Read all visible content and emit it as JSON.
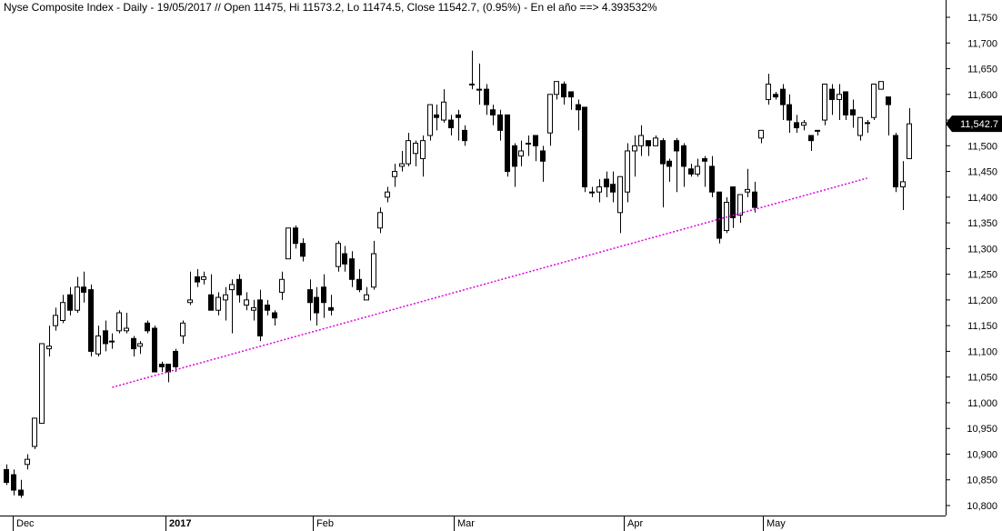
{
  "chart_data": {
    "type": "candlestick",
    "title": "Nyse Composite Index - Daily - 19/05/2017 // Open 11475, Hi 11573.2, Lo 11474.5, Close 11542.7, (0.95%) - En el año ==> 4.393532%",
    "y_ticks": [
      "11,750",
      "11,700",
      "11,650",
      "11,600",
      "11,550",
      "11,500",
      "11,450",
      "11,400",
      "11,350",
      "11,300",
      "11,250",
      "11,200",
      "11,150",
      "11,100",
      "11,050",
      "11,000",
      "10,950",
      "10,900",
      "10,850",
      "10,800"
    ],
    "ylim": [
      10790,
      11780
    ],
    "x_labels": [
      {
        "label": "Dec",
        "bold": false
      },
      {
        "label": "2017",
        "bold": true
      },
      {
        "label": "Feb",
        "bold": false
      },
      {
        "label": "Mar",
        "bold": false
      },
      {
        "label": "Apr",
        "bold": false
      },
      {
        "label": "May",
        "bold": false
      }
    ],
    "last_price_label": "11,542.7",
    "last_price": 11542.7,
    "trendline": {
      "color": "#e000e0",
      "start": {
        "bar": 15,
        "value": 11030
      },
      "end": {
        "bar": 122,
        "value": 11437
      }
    },
    "candles": [
      [
        10870,
        10880,
        10845,
        10840
      ],
      [
        10860,
        10870,
        10830,
        10820
      ],
      [
        10830,
        10850,
        10820,
        10815
      ],
      [
        10880,
        10900,
        10890,
        10870
      ],
      [
        10915,
        10920,
        10970,
        10910
      ],
      [
        10960,
        10970,
        11115,
        10960
      ],
      [
        11105,
        11150,
        11110,
        11090
      ],
      [
        11150,
        11185,
        11170,
        11140
      ],
      [
        11160,
        11210,
        11195,
        11155
      ],
      [
        11210,
        11225,
        11180,
        11170
      ],
      [
        11180,
        11245,
        11225,
        11175
      ],
      [
        11225,
        11255,
        11215,
        11195
      ],
      [
        11220,
        11230,
        11100,
        11090
      ],
      [
        11095,
        11150,
        11130,
        11090
      ],
      [
        11140,
        11160,
        11115,
        11100
      ],
      [
        11120,
        11135,
        11120,
        11105
      ],
      [
        11140,
        11180,
        11175,
        11135
      ],
      [
        11140,
        11175,
        11145,
        11135
      ],
      [
        11125,
        11130,
        11105,
        11090
      ],
      [
        11110,
        11120,
        11115,
        11095
      ],
      [
        11155,
        11160,
        11140,
        11135
      ],
      [
        11145,
        11150,
        11060,
        11060
      ],
      [
        11075,
        11080,
        11070,
        11060
      ],
      [
        11075,
        11060,
        11060,
        11040
      ],
      [
        11100,
        11105,
        11070,
        11060
      ],
      [
        11130,
        11160,
        11155,
        11115
      ],
      [
        11195,
        11255,
        11200,
        11190
      ],
      [
        11245,
        11260,
        11235,
        11225
      ],
      [
        11240,
        11255,
        11245,
        11230
      ],
      [
        11210,
        11250,
        11180,
        11180
      ],
      [
        11180,
        11215,
        11205,
        11170
      ],
      [
        11200,
        11225,
        11210,
        11160
      ],
      [
        11220,
        11240,
        11230,
        11135
      ],
      [
        11240,
        11250,
        11210,
        11195
      ],
      [
        11190,
        11215,
        11200,
        11180
      ],
      [
        11180,
        11200,
        11185,
        11160
      ],
      [
        11200,
        11220,
        11130,
        11120
      ],
      [
        11190,
        11200,
        11180,
        11170
      ],
      [
        11175,
        11180,
        11165,
        11150
      ],
      [
        11215,
        11255,
        11240,
        11200
      ],
      [
        11280,
        11300,
        11340,
        11280
      ],
      [
        11340,
        11345,
        11310,
        11300
      ],
      [
        11310,
        11320,
        11285,
        11275
      ],
      [
        11220,
        11240,
        11195,
        11160
      ],
      [
        11205,
        11225,
        11175,
        11150
      ],
      [
        11225,
        11250,
        11195,
        11165
      ],
      [
        11185,
        11210,
        11180,
        11170
      ],
      [
        11265,
        11315,
        11310,
        11255
      ],
      [
        11290,
        11305,
        11270,
        11255
      ],
      [
        11280,
        11295,
        11240,
        11225
      ],
      [
        11240,
        11260,
        11220,
        11215
      ],
      [
        11200,
        11225,
        11210,
        11200
      ],
      [
        11225,
        11315,
        11290,
        11220
      ],
      [
        11340,
        11380,
        11370,
        11330
      ],
      [
        11400,
        11420,
        11410,
        11390
      ],
      [
        11440,
        11465,
        11450,
        11420
      ],
      [
        11460,
        11490,
        11465,
        11450
      ],
      [
        11465,
        11525,
        11510,
        11460
      ],
      [
        11485,
        11510,
        11505,
        11460
      ],
      [
        11475,
        11520,
        11510,
        11440
      ],
      [
        11520,
        11560,
        11580,
        11510
      ],
      [
        11560,
        11580,
        11555,
        11530
      ],
      [
        11550,
        11610,
        11585,
        11545
      ],
      [
        11550,
        11560,
        11535,
        11520
      ],
      [
        11560,
        11570,
        11555,
        11510
      ],
      [
        11530,
        11540,
        11510,
        11500
      ],
      [
        11620,
        11685,
        11620,
        11610
      ],
      [
        11610,
        11660,
        11610,
        11580
      ],
      [
        11610,
        11620,
        11580,
        11560
      ],
      [
        11570,
        11580,
        11560,
        11540
      ],
      [
        11560,
        11570,
        11530,
        11510
      ],
      [
        11560,
        11550,
        11450,
        11440
      ],
      [
        11500,
        11505,
        11460,
        11420
      ],
      [
        11480,
        11510,
        11490,
        11460
      ],
      [
        11505,
        11520,
        11505,
        11480
      ],
      [
        11520,
        11510,
        11500,
        11470
      ],
      [
        11490,
        11500,
        11470,
        11430
      ],
      [
        11525,
        11595,
        11600,
        11500
      ],
      [
        11600,
        11625,
        11625,
        11590
      ],
      [
        11620,
        11625,
        11595,
        11580
      ],
      [
        11605,
        11600,
        11595,
        11570
      ],
      [
        11580,
        11590,
        11570,
        11530
      ],
      [
        11575,
        11550,
        11420,
        11410
      ],
      [
        11410,
        11420,
        11410,
        11400
      ],
      [
        11410,
        11435,
        11420,
        11390
      ],
      [
        11435,
        11450,
        11420,
        11400
      ],
      [
        11425,
        11450,
        11410,
        11390
      ],
      [
        11370,
        11410,
        11440,
        11330
      ],
      [
        11410,
        11505,
        11490,
        11390
      ],
      [
        11490,
        11520,
        11500,
        11440
      ],
      [
        11500,
        11540,
        11520,
        11480
      ],
      [
        11510,
        11510,
        11500,
        11480
      ],
      [
        11500,
        11520,
        11515,
        11500
      ],
      [
        11510,
        11515,
        11465,
        11380
      ],
      [
        11470,
        11475,
        11460,
        11430
      ],
      [
        11510,
        11515,
        11490,
        11410
      ],
      [
        11500,
        11505,
        11460,
        11420
      ],
      [
        11455,
        11465,
        11445,
        11440
      ],
      [
        11445,
        11475,
        11460,
        11440
      ],
      [
        11475,
        11480,
        11470,
        11420
      ],
      [
        11460,
        11480,
        11410,
        11400
      ],
      [
        11410,
        11410,
        11320,
        11310
      ],
      [
        11335,
        11400,
        11390,
        11330
      ],
      [
        11420,
        11420,
        11360,
        11340
      ],
      [
        11365,
        11385,
        11405,
        11350
      ],
      [
        11410,
        11455,
        11415,
        11400
      ],
      [
        11410,
        11430,
        11380,
        11370
      ],
      [
        11515,
        11525,
        11530,
        11505
      ],
      [
        11590,
        11640,
        11620,
        11580
      ],
      [
        11600,
        11605,
        11595,
        11590
      ],
      [
        11610,
        11620,
        11580,
        11550
      ],
      [
        11580,
        11600,
        11550,
        11525
      ],
      [
        11545,
        11560,
        11535,
        11525
      ],
      [
        11540,
        11550,
        11545,
        11530
      ],
      [
        11520,
        11515,
        11510,
        11490
      ],
      [
        11530,
        11530,
        11530,
        11520
      ],
      [
        11550,
        11620,
        11620,
        11540
      ],
      [
        11610,
        11620,
        11590,
        11560
      ],
      [
        11590,
        11620,
        11600,
        11550
      ],
      [
        11605,
        11590,
        11560,
        11550
      ],
      [
        11570,
        11590,
        11560,
        11535
      ],
      [
        11520,
        11535,
        11555,
        11510
      ],
      [
        11545,
        11550,
        11545,
        11525
      ],
      [
        11555,
        11620,
        11620,
        11550
      ],
      [
        11610,
        11625,
        11625,
        11615
      ],
      [
        11595,
        11595,
        11580,
        11520
      ],
      [
        11520,
        11525,
        11420,
        11410
      ],
      [
        11420,
        11470,
        11430,
        11375
      ],
      [
        11475,
        11573.2,
        11542.7,
        11474.5
      ]
    ]
  }
}
